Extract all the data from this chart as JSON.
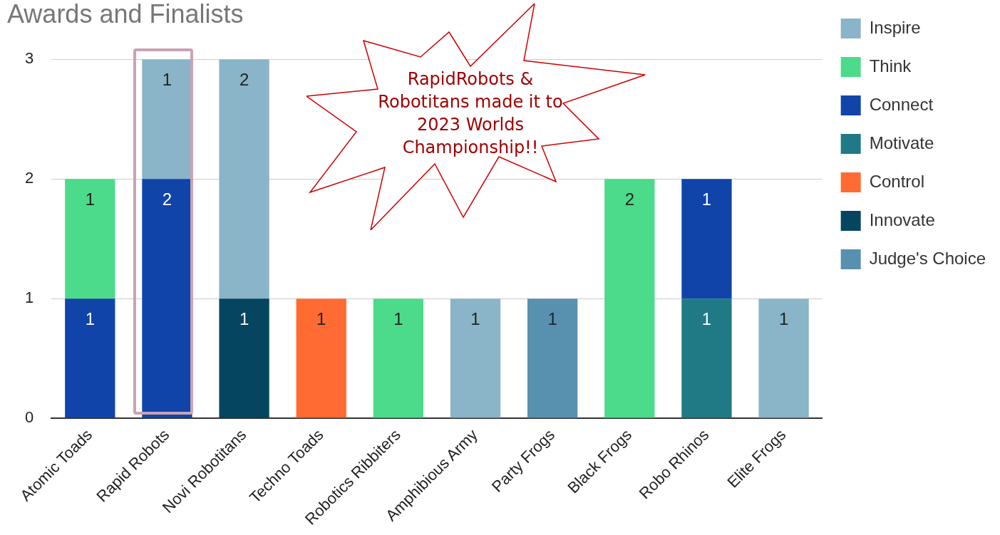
{
  "chart_data": {
    "type": "bar",
    "title": "Awards and Finalists",
    "stacked": true,
    "data_labels": true,
    "legend": "right",
    "grid": "y",
    "categories": [
      "Atomic Toads",
      "Rapid Robots",
      "Novi Robotitans",
      "Techno Toads",
      "Robotics Ribbiters",
      "Amphibious Army",
      "Party Frogs",
      "Black Frogs",
      "Robo Rhinos",
      "Elite Frogs"
    ],
    "ylim": [
      0,
      3
    ],
    "yticks": [
      0,
      1,
      2,
      3
    ],
    "series": [
      {
        "name": "Judge's Choice",
        "color": "#5891b0",
        "values": [
          null,
          null,
          null,
          null,
          null,
          null,
          1,
          null,
          null,
          null
        ]
      },
      {
        "name": "Innovate",
        "color": "#05455f",
        "values": [
          null,
          null,
          1,
          null,
          null,
          null,
          null,
          null,
          null,
          null
        ]
      },
      {
        "name": "Control",
        "color": "#ff6b33",
        "values": [
          null,
          null,
          null,
          1,
          null,
          null,
          null,
          null,
          null,
          null
        ]
      },
      {
        "name": "Motivate",
        "color": "#1f7a86",
        "values": [
          null,
          null,
          null,
          null,
          null,
          null,
          null,
          null,
          1,
          null
        ]
      },
      {
        "name": "Connect",
        "color": "#1044a8",
        "values": [
          1,
          2,
          null,
          null,
          null,
          null,
          null,
          null,
          1,
          null
        ]
      },
      {
        "name": "Think",
        "color": "#4cdb8a",
        "values": [
          1,
          null,
          null,
          null,
          1,
          null,
          null,
          2,
          null,
          null
        ]
      },
      {
        "name": "Inspire",
        "color": "#8ab4c8",
        "values": [
          null,
          1,
          2,
          null,
          null,
          1,
          null,
          null,
          null,
          1
        ]
      }
    ],
    "annotations": [
      "RapidRobots & Robotitans made it to 2023 Worlds Championship!!"
    ]
  }
}
